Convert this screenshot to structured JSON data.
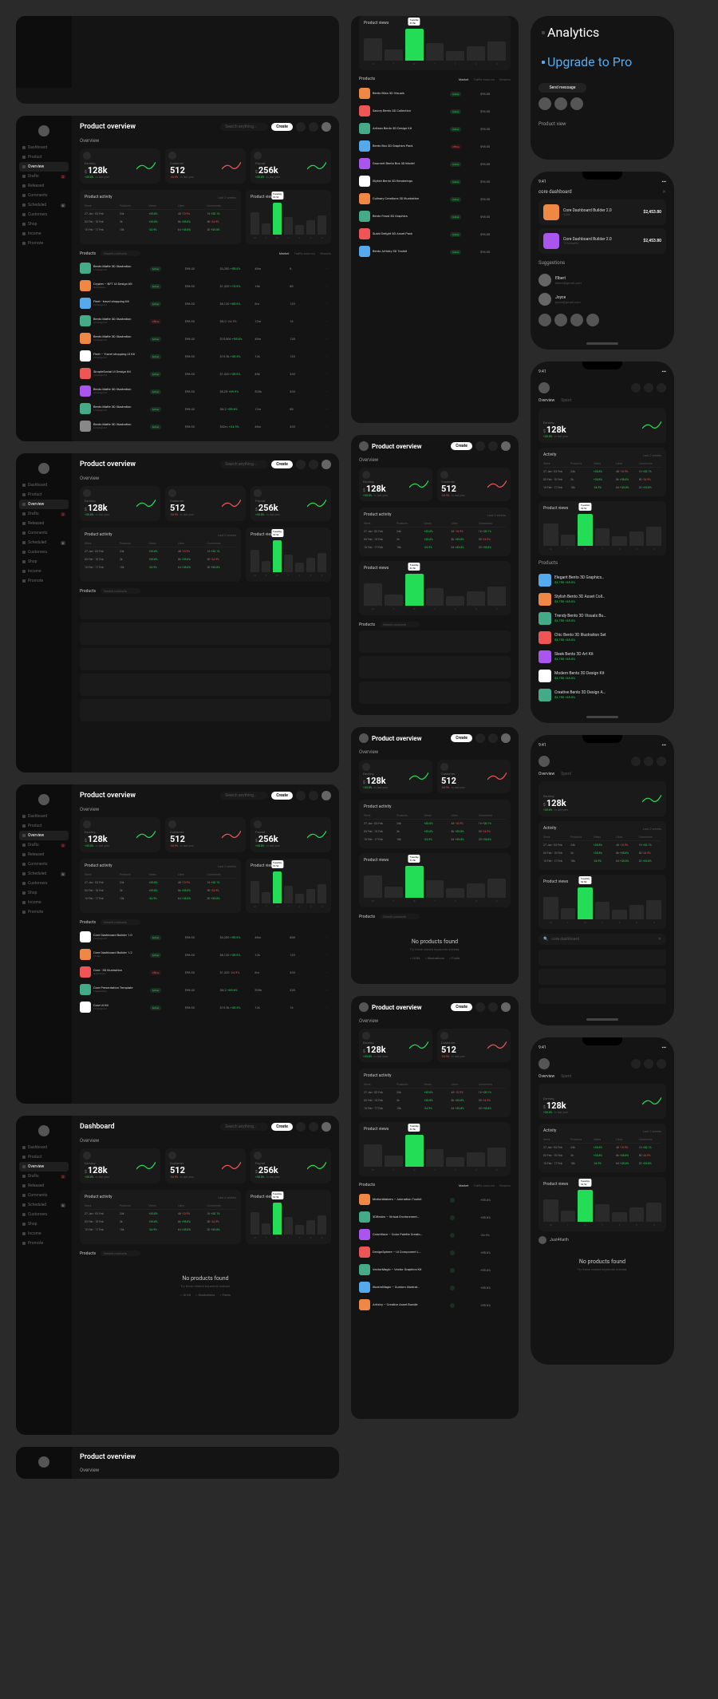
{
  "app": {
    "title_overview": "Product overview",
    "title_dashboard": "Dashboard",
    "search_placeholder": "Search anything…",
    "create_label": "Create",
    "overview_label": "Overview",
    "mobile_time": "9:41"
  },
  "sidebar": {
    "items": [
      {
        "label": "Dashboard"
      },
      {
        "label": "Product"
      },
      {
        "label": "Overview",
        "active": true
      },
      {
        "label": "Drafts",
        "badge": "2",
        "badge_red": true
      },
      {
        "label": "Released"
      },
      {
        "label": "Comments"
      },
      {
        "label": "Scheduled",
        "badge": "6"
      },
      {
        "label": "Customers"
      },
      {
        "label": "Shop"
      },
      {
        "label": "Income"
      },
      {
        "label": "Promote"
      }
    ]
  },
  "metrics": {
    "earning": {
      "label": "Earning",
      "currency": "$",
      "value": "128k",
      "pct": "+35.8%",
      "sub": "vs last year",
      "up": true,
      "spark_color": "#2d5"
    },
    "customer": {
      "label": "Customer",
      "value": "512",
      "pct": "-24.9%",
      "sub": "vs last year",
      "up": false,
      "spark_color": "#e55"
    },
    "payout": {
      "label": "Payout",
      "currency": "$",
      "value": "256k",
      "pct": "+35.8%",
      "sub": "vs last year",
      "up": true,
      "spark_color": "#2d5"
    }
  },
  "activity": {
    "title": "Product activity",
    "range_label": "Last 2 weeks",
    "cols": [
      "Week",
      "Products",
      "Views",
      "Likes",
      "Comments"
    ],
    "rows": [
      {
        "week": "27 Jan - 03 Feb",
        "products": "24k",
        "views": "+35.8%",
        "likes": "48",
        "likes_pct": "-10.9%",
        "comments": "16",
        "comments_pct": "+20.1%"
      },
      {
        "week": "03 Feb - 10 Feb",
        "products": "2k",
        "views": "+35.8%",
        "likes": "8k",
        "likes_pct": "+55.8%",
        "comments": "50",
        "comments_pct": "-24.9%"
      },
      {
        "week": "10 Feb - 17 Feb",
        "products": "10k",
        "views": "-24.9%",
        "likes": "64",
        "likes_pct": "+35.8%",
        "comments": "20",
        "comments_pct": "+35.8%"
      }
    ]
  },
  "views": {
    "title": "Product views",
    "tooltip": "Tuesday\\n32.5k",
    "heights": [
      28,
      14,
      40,
      22,
      12,
      18,
      24
    ],
    "hl_index": 2,
    "labels": [
      "M",
      "T",
      "W",
      "T",
      "F",
      "S",
      "S"
    ]
  },
  "products": {
    "title": "Products",
    "search_placeholder": "Search products",
    "tabs": [
      "Market",
      "Traffic sources",
      "Viewers"
    ],
    "cols": [
      "Product",
      "Status",
      "Price",
      "Sales",
      "Views",
      "Likes"
    ],
    "rows": [
      {
        "name": "Bento Matte 3D Illustration",
        "sub": "UI Design Kit",
        "color": "#4a8",
        "status": "Active",
        "price": "$98.00",
        "sales": "$3,200",
        "sales_pct": "+55.8%",
        "views": "48m",
        "likes": "8"
      },
      {
        "name": "Crypter – NFT UI Design Kit",
        "sub": "Illustrations",
        "color": "#e84",
        "status": "Active",
        "price": "$98.00",
        "sales": "$1,320",
        "sales_pct": "+15.8%",
        "views": "16k",
        "likes": "88"
      },
      {
        "name": "Fleet - travel shopping Kit",
        "sub": "UI Design Kit",
        "color": "#5ae",
        "status": "Active",
        "price": "$98.00",
        "sales": "$8,120",
        "sales_pct": "+85.8%",
        "views": "8m",
        "likes": "123"
      },
      {
        "name": "Bento Matte 3D Illustration",
        "sub": "UI Design Kit",
        "color": "#4a8",
        "status": "Offline",
        "price": "$98.00",
        "sales": "$8/2",
        "sales_pct": "-24.9%",
        "views": "12m",
        "likes": "16"
      },
      {
        "name": "Bento Matte 3D Illustration",
        "sub": "UI Design Kit",
        "color": "#e84",
        "status": "Active",
        "price": "$98.00",
        "sales": "$15,500",
        "sales_pct": "+55.8%",
        "views": "48m",
        "likes": "128"
      },
      {
        "name": "Fleet – Travel shopping UI Kit",
        "sub": "UI Design Kit",
        "color": "#fff",
        "status": "Active",
        "price": "$98.00",
        "sales": "$15.5k",
        "sales_pct": "+35.8%",
        "views": "12k",
        "likes": "123"
      },
      {
        "name": "SimpleSocial UI Design Kit",
        "sub": "UI Design Kit",
        "color": "#e55",
        "status": "Active",
        "price": "$98.00",
        "sales": "$1,320",
        "sales_pct": "+35.8%",
        "views": "48k",
        "likes": "320"
      },
      {
        "name": "Bento Matte 3D Illustration",
        "sub": "UI Design Kit",
        "color": "#a5e",
        "status": "Active",
        "price": "$98.00",
        "sales": "$8,25",
        "sales_pct": "+89.9%",
        "views": "520k",
        "likes": "320"
      },
      {
        "name": "Bento Matte 3D Illustration",
        "sub": "UI Design Kit",
        "color": "#4a8",
        "status": "Active",
        "price": "$98.00",
        "sales": "$8/2",
        "sales_pct": "+55.8%",
        "views": "12m",
        "likes": "88"
      },
      {
        "name": "Bento Matte 3D Illustration",
        "sub": "UI Design Kit",
        "color": "#888",
        "status": "Active",
        "price": "$98.00",
        "sales": "$32m",
        "sales_pct": "+24.9%",
        "views": "48m",
        "likes": "320"
      }
    ],
    "rows_b": [
      {
        "name": "Core Dashboard Builder 1.0",
        "sub": "UI Design Kit",
        "color": "#fff",
        "status": "Active",
        "price": "$98.00",
        "sales": "$3,200",
        "sales_pct": "+55.8%",
        "views": "48m",
        "likes": "888"
      },
      {
        "name": "Core Dashboard Builder 1.2",
        "sub": "15 Sep",
        "color": "#e84",
        "status": "Active",
        "price": "$98.00",
        "sales": "$8,120",
        "sales_pct": "+35.8%",
        "views": "12k",
        "likes": "123"
      },
      {
        "name": "Core - 3D Illustration",
        "sub": "Illustrations",
        "color": "#e55",
        "status": "Offline",
        "price": "$98.00",
        "sales": "$1,320",
        "sales_pct": "-24.9%",
        "views": "8m",
        "likes": "320"
      },
      {
        "name": "Core Presentation Template",
        "sub": "Presentation",
        "color": "#4a8",
        "status": "Active",
        "price": "$98.00",
        "sales": "$8/2",
        "sales_pct": "+85.8%",
        "views": "520k",
        "likes": "320"
      },
      {
        "name": "Core UI Kit",
        "sub": "UI Design Kit",
        "color": "#fff",
        "status": "Active",
        "price": "$98.00",
        "sales": "$15.5k",
        "sales_pct": "+35.8%",
        "views": "12k",
        "likes": "16"
      }
    ],
    "tablet_list": [
      {
        "name": "Bento Bliss 3D Visuals",
        "color": "#e84",
        "status": "Active",
        "price": "$98.00"
      },
      {
        "name": "Savory Bento 3D Collection",
        "color": "#e55",
        "status": "Active",
        "price": "$98.00"
      },
      {
        "name": "Artisan Bento 3D Design Kit",
        "color": "#4a8",
        "status": "Active",
        "price": "$98.00"
      },
      {
        "name": "Bento Box 3D Graphics Pack",
        "color": "#5ae",
        "status": "Offline",
        "price": "$98.00"
      },
      {
        "name": "Gourmet Bento Box 3D Model",
        "color": "#a5e",
        "status": "Active",
        "price": "$98.00"
      },
      {
        "name": "Stylish Bento 3D Renderings",
        "color": "#fff",
        "status": "Active",
        "price": "$98.00"
      },
      {
        "name": "Culinary Creations 3D Illustration",
        "color": "#e84",
        "status": "Active",
        "price": "$98.00"
      },
      {
        "name": "Bento Feast 3D Graphics",
        "color": "#4a8",
        "status": "Active",
        "price": "$98.00"
      },
      {
        "name": "Sushi Delight 3D Asset Pack",
        "color": "#e55",
        "status": "Active",
        "price": "$98.00"
      },
      {
        "name": "Bento Artistry 3D Toolkit",
        "color": "#5ae",
        "status": "Active",
        "price": "$98.00"
      }
    ],
    "tablet_list_b": [
      {
        "name": "MotionMakers – Animation Toolkit",
        "color": "#e84",
        "pct": "+55.8%"
      },
      {
        "name": "3DRealm – Virtual Environment…",
        "color": "#4a8",
        "pct": "+55.8%"
      },
      {
        "name": "ColorWave – Color Palette Creato…",
        "color": "#a5e",
        "pct": "-24.9%"
      },
      {
        "name": "DesignSphere – UI Component L…",
        "color": "#e55",
        "pct": "+55.8%"
      },
      {
        "name": "VectorMagic – Vector Graphics Kit",
        "color": "#4a8",
        "pct": "+55.8%"
      },
      {
        "name": "IllustroMagic – Custom Illustrat…",
        "color": "#5ae",
        "pct": "+55.8%"
      },
      {
        "name": "Artistry – Creative Asset Bundle",
        "color": "#e84",
        "pct": "+55.8%"
      }
    ],
    "mobile_list": [
      {
        "name": "Elegant Bento 3D Graphics…",
        "sub": "$4,750",
        "color": "#5ae",
        "pct": "+35.8%"
      },
      {
        "name": "Stylish Bento 3D Asset Coll…",
        "sub": "$4,750",
        "color": "#e84",
        "pct": "+35.8%"
      },
      {
        "name": "Trendy Bento 3D Visuals Bu…",
        "sub": "$4,750",
        "color": "#4a8",
        "pct": "+35.8%"
      },
      {
        "name": "Chic Bento 3D Illustration Set",
        "sub": "$4,750",
        "color": "#e55",
        "pct": "+35.8%"
      },
      {
        "name": "Sleek Bento 3D Art Kit",
        "sub": "$4,750",
        "color": "#a5e",
        "pct": "+35.8%"
      },
      {
        "name": "Modern Bento 3D Design Kit",
        "sub": "$4,750",
        "color": "#fff",
        "pct": "+35.8%"
      },
      {
        "name": "Creative Bento 3D Design A…",
        "sub": "$4,750",
        "color": "#4a8",
        "pct": "+35.8%"
      }
    ]
  },
  "empty": {
    "title": "No products found",
    "sub": "Try these related keywords instead.",
    "tags": [
      "UI Kit",
      "Illustrations",
      "Fonts"
    ],
    "sub2_label": "core dashboard"
  },
  "mobile_panel": {
    "analytics_label": "Analytics",
    "upgrade_label": "Upgrade to Pro",
    "send_label": "Send message",
    "product_view_label": "Product view",
    "builder1": {
      "name": "Core Dashboard Builder 2.0",
      "sub": "4,200",
      "price": "$2,453.80"
    },
    "builder2": {
      "name": "Core Dashboard Builder 2.0",
      "sub": "19 followers",
      "price": "$2,453.80"
    },
    "suggestions_label": "Suggestions",
    "users": [
      {
        "name": "Elbert",
        "sub": "elbert@gmail.com"
      },
      {
        "name": "Joyce",
        "sub": "joyce@gmail.com"
      }
    ],
    "activity_label": "Activity",
    "range": "Last 2 weeks",
    "user_handle": "Just4Keith"
  },
  "colors": {
    "bg": "#141414",
    "card": "#1a1a1a",
    "accent_green": "#2d5",
    "accent_red": "#e55"
  }
}
